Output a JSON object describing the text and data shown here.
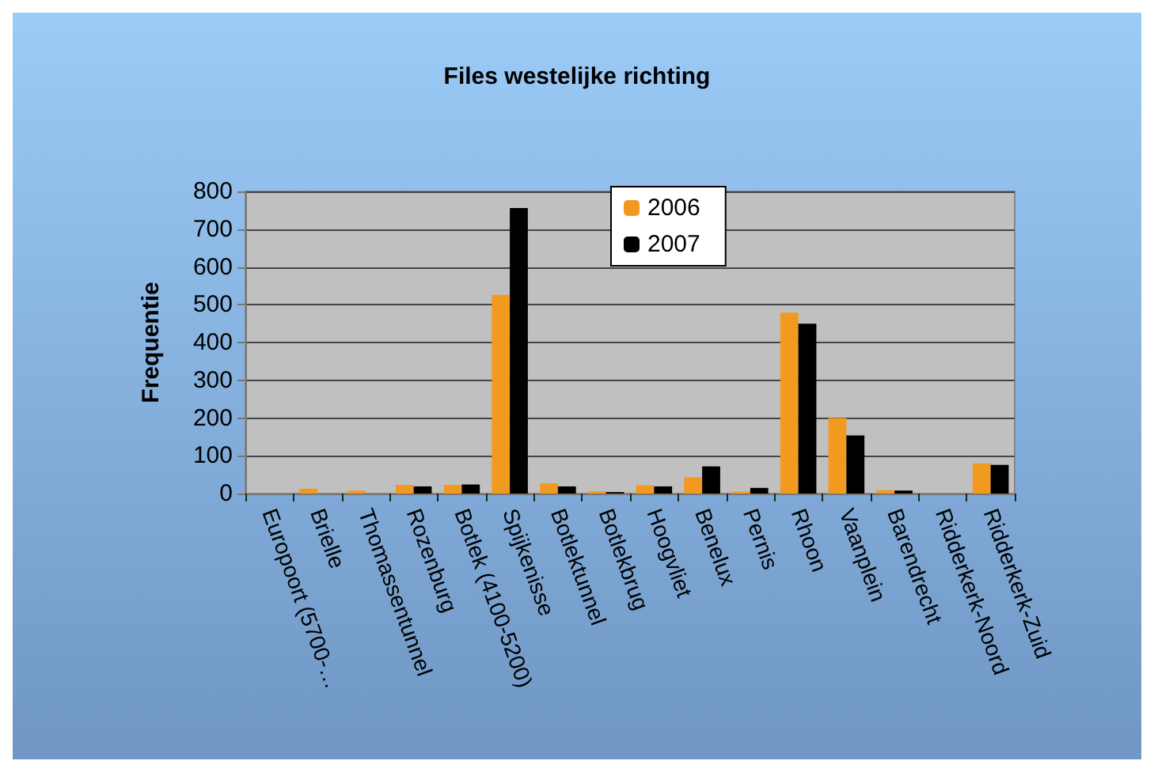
{
  "chart_data": {
    "type": "bar",
    "title": "Files westelijke richting",
    "ylabel": "Frequentie",
    "categories": [
      "Europoort (5700-…",
      "Brielle",
      "Thomassentunnel",
      "Rozenburg",
      "Botlek (4100-5200)",
      "Spijkenisse",
      "Botlektunnel",
      "Botlekbrug",
      "Hoogvliet",
      "Benelux",
      "Pernis",
      "Rhoon",
      "Vaanplein",
      "Barendrecht",
      "Ridderkerk-Noord",
      "Ridderkerk-Zuid"
    ],
    "series": [
      {
        "name": "2006",
        "color": "#f29a20",
        "values": [
          0,
          13,
          8,
          23,
          23,
          526,
          27,
          6,
          22,
          43,
          5,
          479,
          200,
          9,
          0,
          80
        ]
      },
      {
        "name": "2007",
        "color": "#000000",
        "values": [
          0,
          0,
          0,
          19,
          24,
          756,
          19,
          4,
          19,
          72,
          15,
          450,
          154,
          8,
          0,
          76
        ]
      }
    ],
    "ylim": [
      0,
      800
    ],
    "yticks": [
      0,
      100,
      200,
      300,
      400,
      500,
      600,
      700,
      800
    ],
    "grid": "y",
    "legend": "top"
  }
}
